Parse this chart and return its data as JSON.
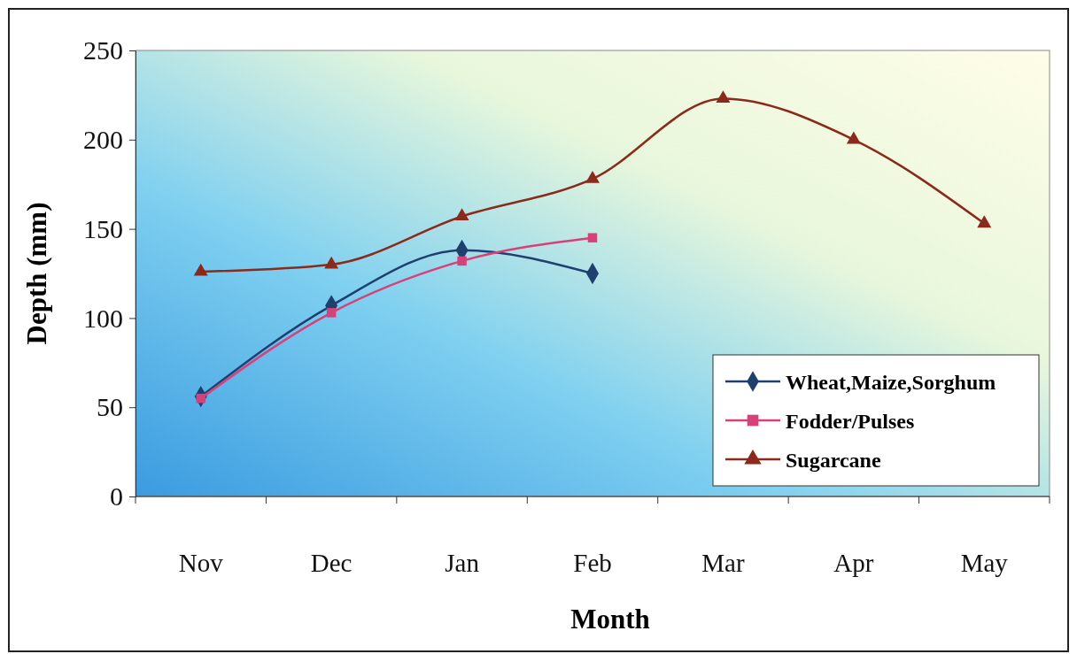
{
  "chart_data": {
    "type": "line",
    "xlabel": "Month",
    "ylabel": "Depth (mm)",
    "categories": [
      "Nov",
      "Dec",
      "Jan",
      "Feb",
      "Mar",
      "Apr",
      "May"
    ],
    "ylim": [
      0,
      250
    ],
    "yticks": [
      0,
      50,
      100,
      150,
      200,
      250
    ],
    "grid": false,
    "legend": "bottom right",
    "series": [
      {
        "name": "Wheat,Maize,Sorghum",
        "color": "#1f3f6e",
        "marker": "diamond",
        "values": [
          56,
          107,
          138,
          125,
          null,
          null,
          null
        ]
      },
      {
        "name": "Fodder/Pulses",
        "color": "#d8407a",
        "marker": "square",
        "values": [
          55,
          103,
          132,
          145,
          null,
          null,
          null
        ]
      },
      {
        "name": "Sugarcane",
        "color": "#8b2a1a",
        "marker": "triangle",
        "values": [
          126,
          130,
          157,
          178,
          223,
          200,
          153
        ]
      }
    ]
  }
}
